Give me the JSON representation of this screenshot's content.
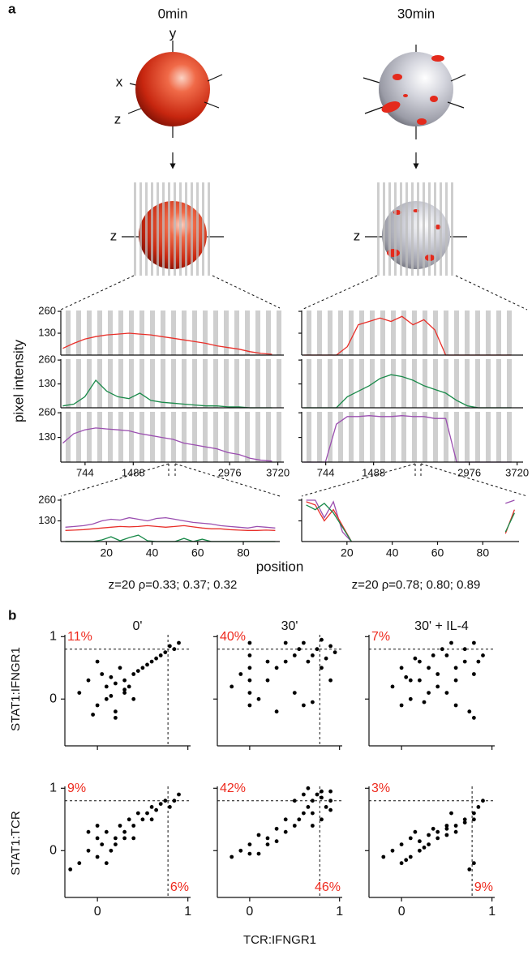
{
  "panel_a": {
    "label": "a",
    "conditions": [
      "0min",
      "30min"
    ],
    "axis_names": {
      "x": "x",
      "y": "y",
      "z": "z"
    },
    "y_label": "pixel intensity",
    "x_label": "position",
    "profile": {
      "x": [
        400,
        570,
        740,
        910,
        1080,
        1250,
        1420,
        1590,
        1760,
        1930,
        2100,
        2270,
        2440,
        2610,
        2780,
        2950,
        3120,
        3290,
        3460,
        3630
      ],
      "xlim": [
        370,
        3750
      ],
      "ylim": [
        0,
        265
      ],
      "xticks": [
        744,
        1488,
        2976,
        3720
      ],
      "yticks": [
        130,
        260
      ],
      "columns": [
        {
          "rows": [
            {
              "color": "#e8302a",
              "values": [
                40,
                70,
                95,
                110,
                120,
                125,
                130,
                125,
                120,
                110,
                100,
                90,
                80,
                70,
                55,
                45,
                35,
                20,
                10,
                5
              ]
            },
            {
              "color": "#1a8a4a",
              "values": [
                10,
                20,
                60,
                150,
                90,
                60,
                50,
                80,
                40,
                30,
                25,
                20,
                15,
                10,
                10,
                5,
                5,
                0,
                0,
                0
              ]
            },
            {
              "color": "#9b4fb0",
              "values": [
                100,
                150,
                170,
                180,
                175,
                170,
                165,
                150,
                140,
                130,
                120,
                100,
                90,
                80,
                70,
                50,
                40,
                20,
                10,
                5
              ]
            }
          ]
        },
        {
          "rows": [
            {
              "color": "#e8302a",
              "values": [
                0,
                0,
                0,
                0,
                50,
                180,
                200,
                220,
                200,
                230,
                180,
                210,
                150,
                0,
                0,
                0,
                0,
                0,
                0,
                0
              ]
            },
            {
              "color": "#1a8a4a",
              "values": [
                0,
                0,
                0,
                0,
                60,
                90,
                120,
                160,
                180,
                170,
                150,
                120,
                100,
                80,
                40,
                10,
                0,
                0,
                0,
                0
              ]
            },
            {
              "color": "#9b4fb0",
              "values": [
                0,
                0,
                0,
                200,
                240,
                240,
                245,
                240,
                240,
                245,
                240,
                240,
                230,
                230,
                0,
                0,
                0,
                0,
                0,
                0
              ]
            }
          ]
        }
      ]
    },
    "zoom": {
      "x": [
        2,
        6,
        10,
        14,
        18,
        22,
        26,
        30,
        34,
        38,
        42,
        46,
        50,
        54,
        58,
        62,
        66,
        70,
        74,
        78,
        82,
        86,
        90,
        94
      ],
      "xlim": [
        0,
        96
      ],
      "ylim": [
        0,
        270
      ],
      "xticks": [
        20,
        40,
        60,
        80
      ],
      "yticks": [
        130,
        260
      ],
      "columns": [
        {
          "series": [
            {
              "color": "#9b4fb0",
              "values": [
                90,
                95,
                100,
                110,
                130,
                140,
                135,
                150,
                140,
                130,
                145,
                150,
                140,
                130,
                120,
                115,
                110,
                100,
                95,
                90,
                85,
                95,
                90,
                85
              ]
            },
            {
              "color": "#e8302a",
              "values": [
                70,
                72,
                75,
                80,
                85,
                90,
                95,
                92,
                95,
                100,
                95,
                90,
                95,
                100,
                92,
                85,
                80,
                80,
                75,
                72,
                70,
                70,
                72,
                70
              ]
            },
            {
              "color": "#1a8a4a",
              "values": [
                0,
                0,
                0,
                0,
                10,
                30,
                5,
                25,
                40,
                5,
                0,
                0,
                0,
                20,
                0,
                15,
                0,
                0,
                0,
                0,
                0,
                0,
                0,
                0
              ]
            }
          ]
        },
        {
          "series": [
            {
              "color": "#9b4fb0",
              "values": [
                260,
                260,
                150,
                250,
                60,
                0,
                null,
                null,
                null,
                null,
                null,
                null,
                null,
                null,
                null,
                null,
                null,
                null,
                null,
                null,
                null,
                null,
                240,
                260
              ]
            },
            {
              "color": "#e8302a",
              "values": [
                250,
                230,
                130,
                200,
                100,
                0,
                null,
                null,
                null,
                null,
                null,
                null,
                null,
                null,
                null,
                null,
                null,
                null,
                null,
                null,
                null,
                null,
                50,
                200
              ]
            },
            {
              "color": "#1a8a4a",
              "values": [
                230,
                200,
                240,
                180,
                90,
                0,
                null,
                null,
                null,
                null,
                null,
                null,
                null,
                null,
                null,
                null,
                null,
                null,
                null,
                null,
                null,
                null,
                60,
                180
              ]
            }
          ]
        }
      ]
    },
    "stats": [
      "z=20  ρ=0.33; 0.37; 0.32",
      "z=20  ρ=0.78; 0.80; 0.89"
    ]
  },
  "panel_b": {
    "label": "b",
    "titles": [
      "0'",
      "30'",
      "30' + IL-4"
    ],
    "row_labels": [
      "STAT1:IFNGR1",
      "STAT1:TCR"
    ],
    "x_label": "TCR:IFNGR1",
    "xlim": [
      -0.36,
      1.03
    ],
    "ylim": [
      -0.75,
      1.03
    ],
    "xticks": [
      0,
      1
    ],
    "yticks": [
      0,
      1
    ],
    "threshold_x": 0.78,
    "threshold_y": 0.8,
    "point_color": "#000000",
    "label_color": "#ee2a1e",
    "rows": [
      {
        "plots": [
          {
            "upper_left": "11%",
            "vline": true,
            "x": [
              -0.2,
              -0.1,
              0,
              0.05,
              0.1,
              0.1,
              0.15,
              0.2,
              0.2,
              0.25,
              0.3,
              0.3,
              0.35,
              0.4,
              0.4,
              0.45,
              0.5,
              0.55,
              0.6,
              0.65,
              0.7,
              0.75,
              0.8,
              0.85,
              0.9,
              0.0,
              0.2,
              0.3,
              -0.05,
              0.15
            ],
            "y": [
              0.1,
              0.3,
              -0.1,
              0.4,
              0.2,
              0.0,
              0.35,
              0.25,
              -0.2,
              0.5,
              0.1,
              0.3,
              0.2,
              0.4,
              0.0,
              0.45,
              0.5,
              0.55,
              0.6,
              0.65,
              0.7,
              0.75,
              0.85,
              0.8,
              0.9,
              0.6,
              -0.3,
              0.15,
              -0.25,
              0.05
            ]
          },
          {
            "upper_left": "40%",
            "vline": true,
            "x": [
              0,
              0,
              0,
              0,
              0,
              0,
              -0.2,
              -0.1,
              0.1,
              0.2,
              0.3,
              0.4,
              0.5,
              0.55,
              0.6,
              0.65,
              0.7,
              0.75,
              0.8,
              0.85,
              0.9,
              0.95,
              0.6,
              0.7,
              0.8,
              0.9,
              0.5,
              0.4,
              0.3,
              0.2
            ],
            "y": [
              0.9,
              0.7,
              0.5,
              0.3,
              0.1,
              -0.1,
              0.2,
              0.4,
              0.0,
              0.3,
              0.5,
              0.6,
              0.7,
              0.8,
              0.9,
              0.6,
              0.7,
              0.8,
              0.95,
              0.65,
              0.85,
              0.75,
              -0.1,
              -0.05,
              0.5,
              0.3,
              0.1,
              0.9,
              -0.2,
              0.6
            ]
          },
          {
            "upper_left": "7%",
            "vline": false,
            "x": [
              -0.1,
              0,
              0.1,
              0.2,
              0.3,
              0.4,
              0.5,
              0.6,
              0.7,
              0.8,
              0.85,
              0.9,
              0.0,
              0.1,
              0.2,
              0.3,
              0.4,
              0.5,
              0.6,
              0.7,
              0.8,
              0.75,
              0.6,
              0.45,
              0.35,
              0.25,
              0.15,
              0.05,
              0.55,
              0.8
            ],
            "y": [
              0.2,
              0.5,
              0.3,
              0.6,
              0.1,
              0.4,
              0.7,
              0.5,
              0.8,
              0.9,
              0.6,
              0.7,
              -0.1,
              0.0,
              0.3,
              0.5,
              0.2,
              0.1,
              0.3,
              0.6,
              0.4,
              -0.2,
              -0.1,
              0.8,
              0.7,
              -0.05,
              0.65,
              0.35,
              0.9,
              -0.3
            ]
          }
        ]
      },
      {
        "plots": [
          {
            "upper_left": "9%",
            "lower_right": "6%",
            "vline": true,
            "x": [
              -0.3,
              -0.2,
              -0.1,
              0,
              0,
              0.05,
              0.1,
              0.15,
              0.2,
              0.25,
              0.3,
              0.35,
              0.4,
              0.45,
              0.5,
              0.55,
              0.6,
              0.65,
              0.7,
              0.75,
              0.8,
              0.85,
              0.9,
              0.1,
              0.2,
              0.3,
              -0.1,
              0.0,
              0.4,
              0.6
            ],
            "y": [
              -0.3,
              -0.2,
              0.0,
              -0.1,
              0.2,
              0.1,
              0.3,
              0.0,
              0.2,
              0.4,
              0.3,
              0.5,
              0.4,
              0.6,
              0.5,
              0.6,
              0.7,
              0.65,
              0.75,
              0.8,
              0.7,
              0.8,
              0.9,
              -0.2,
              0.1,
              0.2,
              0.3,
              0.4,
              0.2,
              0.5
            ]
          },
          {
            "upper_left": "42%",
            "lower_right": "46%",
            "vline": true,
            "x": [
              -0.2,
              -0.1,
              0,
              0.1,
              0.2,
              0.3,
              0.4,
              0.5,
              0.55,
              0.6,
              0.65,
              0.7,
              0.75,
              0.8,
              0.85,
              0.9,
              0.6,
              0.7,
              0.8,
              0.9,
              0.5,
              0.4,
              0.3,
              0.2,
              0.1,
              0.0,
              0.7,
              0.8,
              0.65,
              0.9
            ],
            "y": [
              -0.1,
              0.0,
              0.1,
              -0.05,
              0.2,
              0.15,
              0.3,
              0.4,
              0.5,
              0.6,
              0.7,
              0.8,
              0.9,
              0.95,
              0.7,
              0.8,
              0.9,
              0.6,
              0.5,
              0.95,
              0.8,
              0.5,
              0.35,
              0.1,
              0.25,
              -0.05,
              0.4,
              0.85,
              1.0,
              0.65
            ]
          },
          {
            "upper_left": "3%",
            "lower_right": "9%",
            "vline": true,
            "x": [
              -0.2,
              -0.1,
              0,
              0.1,
              0.2,
              0.3,
              0.4,
              0.5,
              0.6,
              0.7,
              0.8,
              0.85,
              0.0,
              0.1,
              0.2,
              0.3,
              0.4,
              0.5,
              0.6,
              0.7,
              0.8,
              0.75,
              0.8,
              0.5,
              0.35,
              0.25,
              0.15,
              0.05,
              0.55,
              0.9
            ],
            "y": [
              -0.1,
              0.0,
              0.1,
              0.2,
              0.15,
              0.25,
              0.3,
              0.35,
              0.4,
              0.5,
              0.6,
              0.7,
              -0.2,
              -0.1,
              0.0,
              0.1,
              0.2,
              0.25,
              0.3,
              0.45,
              0.5,
              -0.3,
              -0.2,
              0.4,
              0.35,
              0.05,
              0.3,
              -0.15,
              0.6,
              0.8
            ]
          }
        ]
      }
    ]
  }
}
